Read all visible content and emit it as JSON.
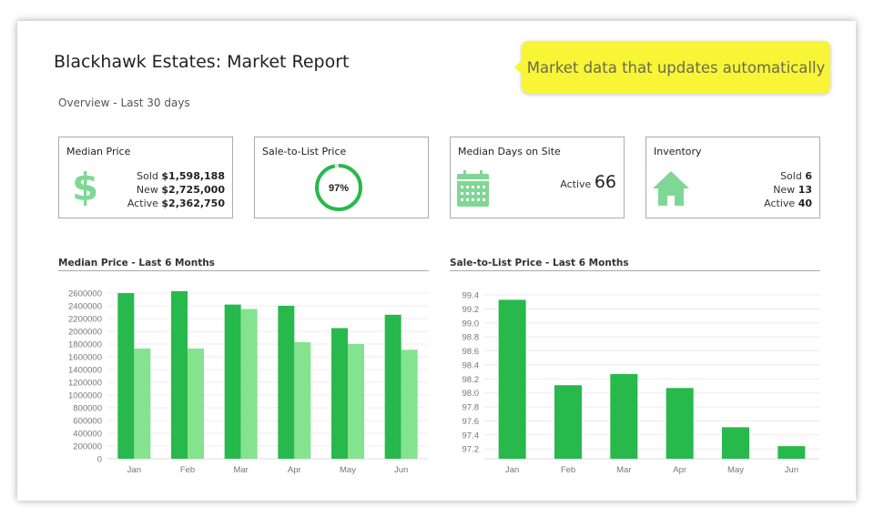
{
  "header": {
    "title": "Blackhawk Estates: Market Report",
    "subtitle": "Overview - Last 30 days"
  },
  "callout": {
    "text": "Market data that updates automatically",
    "color": "#f7f535"
  },
  "cards": {
    "median_price": {
      "title": "Median Price",
      "icon": "dollar-icon",
      "sold_label": "Sold",
      "sold": "$1,598,188",
      "new_label": "New",
      "new": "$2,725,000",
      "active_label": "Active",
      "active": "$2,362,750"
    },
    "sale_to_list": {
      "title": "Sale-to-List Price",
      "value": "97%",
      "percent": 97
    },
    "days_on_site": {
      "title": "Median Days on Site",
      "icon": "calendar-icon",
      "active_label": "Active",
      "active": "66"
    },
    "inventory": {
      "title": "Inventory",
      "icon": "house-icon",
      "sold_label": "Sold",
      "sold": "6",
      "new_label": "New",
      "new": "13",
      "active_label": "Active",
      "active": "40"
    }
  },
  "colors": {
    "dark_green": "#27b94c",
    "light_green": "#84e38f",
    "icon_green": "#7fd795"
  },
  "chart_data": [
    {
      "type": "bar",
      "title": "Median Price - Last 6 Months",
      "categories": [
        "Jan",
        "Feb",
        "Mar",
        "Apr",
        "May",
        "Jun"
      ],
      "series": [
        {
          "name": "series-1",
          "values": [
            2600000,
            2630000,
            2420000,
            2400000,
            2050000,
            2260000
          ]
        },
        {
          "name": "series-2",
          "values": [
            1730000,
            1730000,
            2350000,
            1830000,
            1800000,
            1710000
          ]
        }
      ],
      "ylim": [
        0,
        2600000
      ],
      "yticks": [
        0,
        200000,
        400000,
        600000,
        800000,
        1000000,
        1200000,
        1400000,
        1600000,
        1800000,
        2000000,
        2200000,
        2400000,
        2600000
      ],
      "grid": true
    },
    {
      "type": "bar",
      "title": "Sale-to-List Price - Last 6 Months",
      "categories": [
        "Jan",
        "Feb",
        "Mar",
        "Apr",
        "May",
        "Jun"
      ],
      "values": [
        99.33,
        98.11,
        98.27,
        98.07,
        97.51,
        97.24
      ],
      "ylim": [
        97.06,
        99.4
      ],
      "yticks": [
        "97.2",
        "97.4",
        "97.6",
        "97.8",
        "98.0",
        "98.2",
        "98.4",
        "98.6",
        "98.8",
        "99.0",
        "99.2",
        "99.4"
      ],
      "grid": true
    }
  ]
}
